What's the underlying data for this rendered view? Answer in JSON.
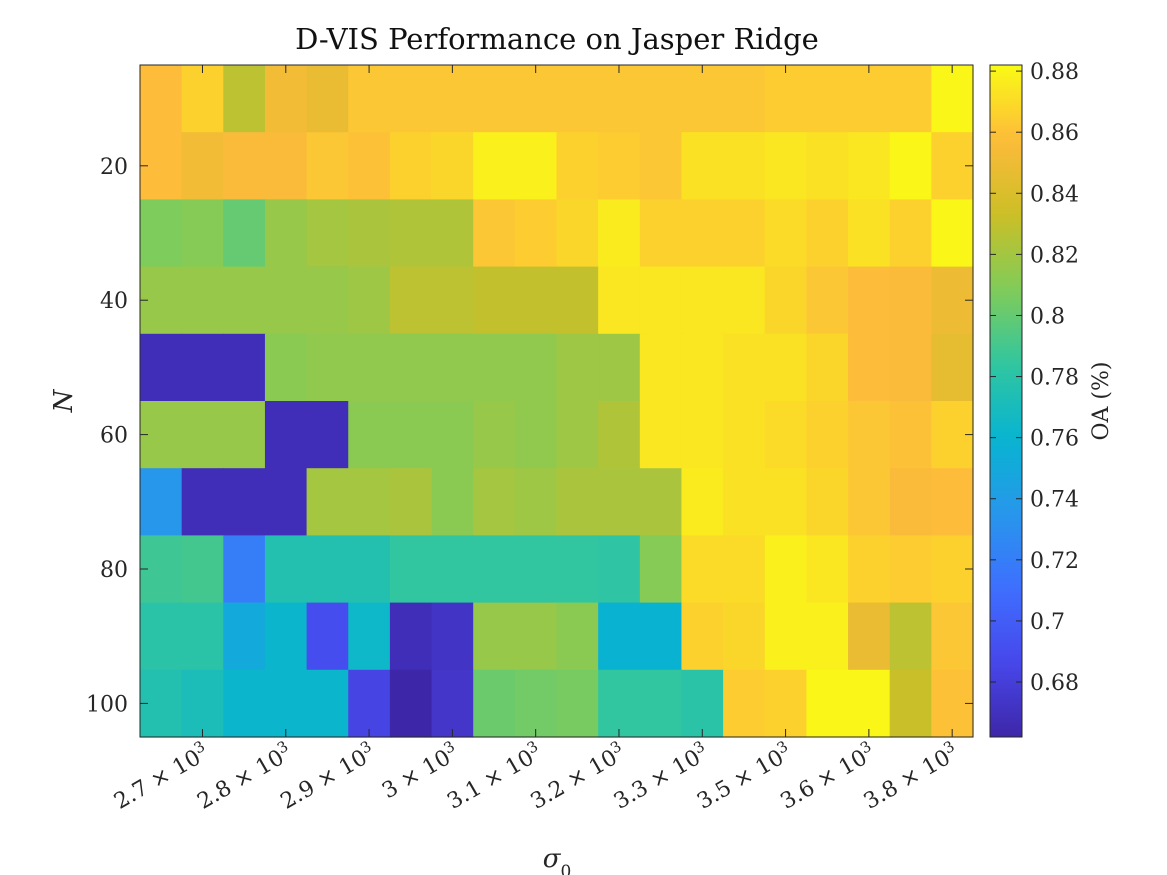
{
  "chart_data": {
    "type": "heatmap",
    "title": "D-VIS Performance on Jasper Ridge",
    "xlabel": "σ",
    "xlabel_sub": "0",
    "ylabel": "N",
    "colorbar_label": "OA (%)",
    "colormap": "parula",
    "clim": [
      0.662,
      0.882
    ],
    "x_tick_labels": [
      {
        "mantissa": "2.7",
        "exp": "3"
      },
      {
        "mantissa": "2.8",
        "exp": "3"
      },
      {
        "mantissa": "2.9",
        "exp": "3"
      },
      {
        "mantissa": "3",
        "exp": "3"
      },
      {
        "mantissa": "3.1",
        "exp": "3"
      },
      {
        "mantissa": "3.2",
        "exp": "3"
      },
      {
        "mantissa": "3.3",
        "exp": "3"
      },
      {
        "mantissa": "3.5",
        "exp": "3"
      },
      {
        "mantissa": "3.6",
        "exp": "3"
      },
      {
        "mantissa": "3.8",
        "exp": "3"
      }
    ],
    "y_tick_labels": [
      "20",
      "40",
      "60",
      "80",
      "100"
    ],
    "colorbar_ticks": [
      "0.68",
      "0.7",
      "0.72",
      "0.74",
      "0.76",
      "0.78",
      "0.8",
      "0.82",
      "0.84",
      "0.86",
      "0.88"
    ],
    "rows": 10,
    "cols": 20,
    "values": [
      [
        0.858,
        0.866,
        0.828,
        0.852,
        0.848,
        0.862,
        0.862,
        0.862,
        0.862,
        0.862,
        0.862,
        0.862,
        0.862,
        0.862,
        0.862,
        0.864,
        0.864,
        0.864,
        0.864,
        0.88
      ],
      [
        0.858,
        0.852,
        0.856,
        0.856,
        0.862,
        0.86,
        0.866,
        0.868,
        0.878,
        0.878,
        0.866,
        0.864,
        0.862,
        0.872,
        0.872,
        0.874,
        0.872,
        0.874,
        0.88,
        0.866
      ],
      [
        0.808,
        0.81,
        0.8,
        0.816,
        0.82,
        0.822,
        0.824,
        0.824,
        0.862,
        0.864,
        0.868,
        0.876,
        0.866,
        0.866,
        0.866,
        0.87,
        0.866,
        0.872,
        0.866,
        0.88
      ],
      [
        0.816,
        0.816,
        0.816,
        0.816,
        0.816,
        0.818,
        0.828,
        0.828,
        0.83,
        0.83,
        0.83,
        0.874,
        0.874,
        0.874,
        0.874,
        0.868,
        0.862,
        0.858,
        0.856,
        0.85
      ],
      [
        0.668,
        0.668,
        0.668,
        0.812,
        0.814,
        0.814,
        0.814,
        0.814,
        0.814,
        0.814,
        0.818,
        0.818,
        0.874,
        0.874,
        0.872,
        0.872,
        0.868,
        0.858,
        0.856,
        0.846
      ],
      [
        0.816,
        0.816,
        0.816,
        0.668,
        0.668,
        0.812,
        0.812,
        0.812,
        0.816,
        0.814,
        0.818,
        0.824,
        0.874,
        0.874,
        0.872,
        0.87,
        0.866,
        0.862,
        0.86,
        0.866
      ],
      [
        0.736,
        0.668,
        0.668,
        0.668,
        0.82,
        0.82,
        0.822,
        0.812,
        0.82,
        0.818,
        0.822,
        0.822,
        0.822,
        0.876,
        0.872,
        0.872,
        0.868,
        0.862,
        0.856,
        0.858
      ],
      [
        0.788,
        0.79,
        0.72,
        0.776,
        0.776,
        0.776,
        0.784,
        0.784,
        0.784,
        0.784,
        0.784,
        0.782,
        0.81,
        0.87,
        0.87,
        0.878,
        0.874,
        0.866,
        0.864,
        0.866
      ],
      [
        0.78,
        0.78,
        0.75,
        0.762,
        0.69,
        0.764,
        0.668,
        0.672,
        0.816,
        0.816,
        0.812,
        0.758,
        0.758,
        0.866,
        0.868,
        0.878,
        0.878,
        0.848,
        0.828,
        0.862
      ],
      [
        0.776,
        0.772,
        0.762,
        0.762,
        0.762,
        0.684,
        0.662,
        0.674,
        0.802,
        0.804,
        0.806,
        0.784,
        0.784,
        0.78,
        0.864,
        0.866,
        0.88,
        0.88,
        0.832,
        0.86
      ]
    ]
  }
}
